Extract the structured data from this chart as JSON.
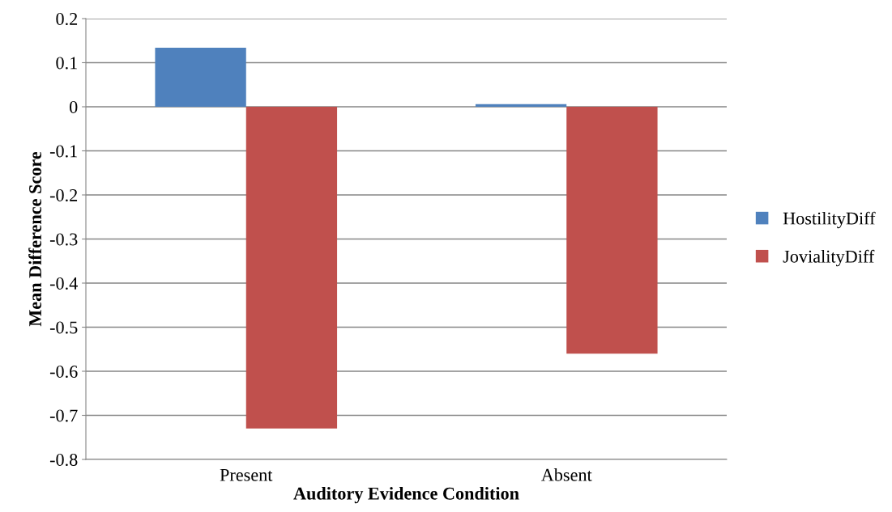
{
  "chart_data": {
    "type": "bar",
    "xlabel": "Auditory Evidence Condition",
    "ylabel": "Mean Difference Score",
    "categories": [
      "Present",
      "Absent"
    ],
    "series": [
      {
        "name": "HostilityDiff",
        "color": "#4f81bd",
        "values": [
          0.134,
          0.006
        ]
      },
      {
        "name": "JovialityDiff",
        "color": "#c0504d",
        "values": [
          -0.73,
          -0.56
        ]
      }
    ],
    "ylim": [
      -0.8,
      0.2
    ],
    "yticks": [
      0.2,
      0.1,
      0,
      -0.1,
      -0.2,
      -0.3,
      -0.4,
      -0.5,
      -0.6,
      -0.7,
      -0.8
    ],
    "grid": "y",
    "legend": "right"
  }
}
